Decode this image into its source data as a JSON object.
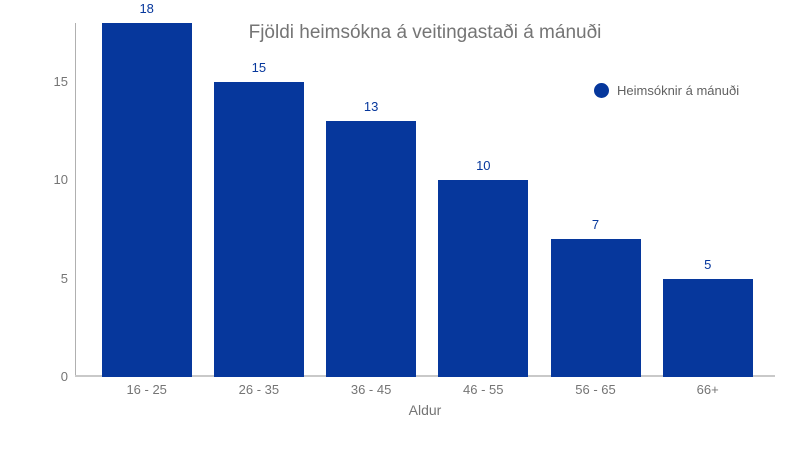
{
  "chart": {
    "title": "Fjöldi heimsókna á veitingastaði á mánuði",
    "legend_label": "Heimsóknir á mánuði",
    "xlabel": "Aldur"
  },
  "colors": {
    "bar": "#06379c",
    "annotation_text": "#06379c",
    "title_text": "#757575",
    "axis_text": "#757575",
    "legend_text": "#616161",
    "y_axis_line": "#b0b0b0",
    "x_baseline": "#c9c9c9",
    "background": "#ffffff"
  },
  "chart_data": {
    "type": "bar",
    "title": "Fjöldi heimsókna á veitingastaði á mánuði",
    "categories": [
      "16 - 25",
      "26 - 35",
      "36 - 45",
      "46 - 55",
      "56 - 65",
      "66+"
    ],
    "values": [
      18,
      15,
      13,
      10,
      7,
      5
    ],
    "series": [
      {
        "name": "Heimsóknir á mánuði",
        "values": [
          18,
          15,
          13,
          10,
          7,
          5
        ]
      }
    ],
    "xlabel": "Aldur",
    "ylabel": "",
    "ylim": [
      0,
      18
    ],
    "yticks": [
      0,
      5,
      10,
      15
    ],
    "grid": false,
    "legend_position": "top-right",
    "bar_color": "#06379c",
    "data_labels_shown": true
  }
}
